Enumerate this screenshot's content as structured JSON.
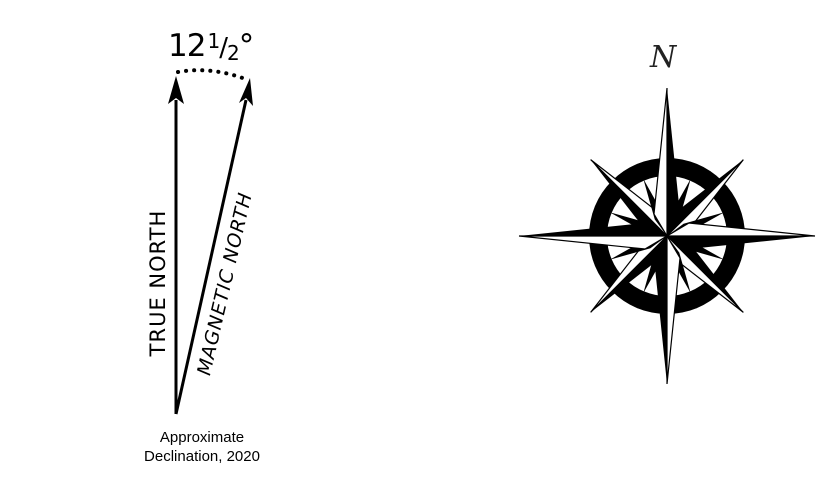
{
  "declination": {
    "angle_whole": "12",
    "angle_num": "1",
    "angle_den": "2",
    "angle_degree": "°",
    "true_label": "TRUE  NORTH",
    "magnetic_label": "MAGNETIC  NORTH",
    "caption_line1": "Approximate",
    "caption_line2": "Declination, 2020",
    "angle_value_deg": 12.5
  },
  "compass": {
    "north_label": "N",
    "ink_color": "#000000",
    "paper_color": "#ffffff"
  }
}
